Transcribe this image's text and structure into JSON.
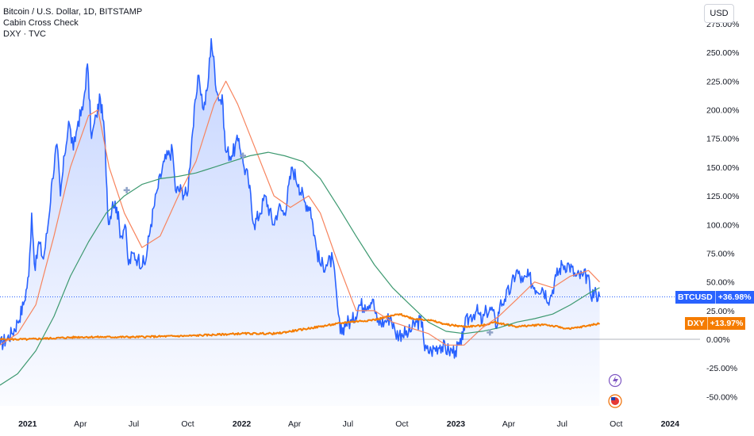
{
  "legend": {
    "symbol": "Bitcoin / U.S. Dollar, 1D, BITSTAMP",
    "indicator": "Cabin Cross Check",
    "compare": "DXY · TVC"
  },
  "currency": "USD",
  "colors": {
    "btc": "#2962ff",
    "btc_fill": "#2962ff",
    "dxy": "#f57c00",
    "ma_fast": "#f7845e",
    "ma_slow": "#3d9970",
    "cross": "#90a4c8",
    "baseline": "#b2b5be"
  },
  "badges": {
    "btc": {
      "label": "BTCUSD",
      "value": "+36.98%",
      "color": "#2962ff",
      "y": 36.98
    },
    "dxy": {
      "label": "DXY",
      "value": "+13.97%",
      "color": "#f57c00",
      "y": 13.97
    }
  },
  "chart_data": {
    "type": "line",
    "ylim": [
      -58,
      275
    ],
    "yticks": [
      {
        "v": 275,
        "label": "275.00%"
      },
      {
        "v": 250,
        "label": "250.00%"
      },
      {
        "v": 225,
        "label": "225.00%"
      },
      {
        "v": 200,
        "label": "200.00%"
      },
      {
        "v": 175,
        "label": "175.00%"
      },
      {
        "v": 150,
        "label": "150.00%"
      },
      {
        "v": 125,
        "label": "125.00%"
      },
      {
        "v": 100,
        "label": "100.00%"
      },
      {
        "v": 75,
        "label": "75.00%"
      },
      {
        "v": 50,
        "label": "50.00%"
      },
      {
        "v": 25,
        "label": "25.00%"
      },
      {
        "v": 0,
        "label": "0.00%"
      },
      {
        "v": -25,
        "label": "-25.00%"
      },
      {
        "v": -50,
        "label": "-50.00%"
      }
    ],
    "xlim": [
      "2020-11-15",
      "2024-01-25"
    ],
    "xticks": [
      {
        "date": "2021-01-01",
        "label": "2021",
        "bold": true
      },
      {
        "date": "2021-04-01",
        "label": "Apr",
        "bold": false
      },
      {
        "date": "2021-07-01",
        "label": "Jul",
        "bold": false
      },
      {
        "date": "2021-10-01",
        "label": "Oct",
        "bold": false
      },
      {
        "date": "2022-01-01",
        "label": "2022",
        "bold": true
      },
      {
        "date": "2022-04-01",
        "label": "Apr",
        "bold": false
      },
      {
        "date": "2022-07-01",
        "label": "Jul",
        "bold": false
      },
      {
        "date": "2022-10-01",
        "label": "Oct",
        "bold": false
      },
      {
        "date": "2023-01-01",
        "label": "2023",
        "bold": true
      },
      {
        "date": "2023-04-01",
        "label": "Apr",
        "bold": false
      },
      {
        "date": "2023-07-01",
        "label": "Jul",
        "bold": false
      },
      {
        "date": "2023-10-01",
        "label": "Oct",
        "bold": false
      },
      {
        "date": "2024-01-01",
        "label": "2024",
        "bold": true
      }
    ],
    "series": [
      {
        "name": "BTCUSD",
        "style": "area",
        "points": [
          [
            "2020-11-15",
            -5
          ],
          [
            "2020-11-25",
            0
          ],
          [
            "2020-12-05",
            5
          ],
          [
            "2020-12-15",
            15
          ],
          [
            "2020-12-25",
            30
          ],
          [
            "2021-01-03",
            55
          ],
          [
            "2021-01-08",
            110
          ],
          [
            "2021-01-14",
            60
          ],
          [
            "2021-01-20",
            85
          ],
          [
            "2021-01-28",
            70
          ],
          [
            "2021-02-05",
            100
          ],
          [
            "2021-02-12",
            140
          ],
          [
            "2021-02-20",
            170
          ],
          [
            "2021-02-26",
            125
          ],
          [
            "2021-03-05",
            160
          ],
          [
            "2021-03-12",
            190
          ],
          [
            "2021-03-20",
            165
          ],
          [
            "2021-03-28",
            190
          ],
          [
            "2021-04-05",
            200
          ],
          [
            "2021-04-13",
            240
          ],
          [
            "2021-04-20",
            175
          ],
          [
            "2021-04-28",
            195
          ],
          [
            "2021-05-05",
            210
          ],
          [
            "2021-05-12",
            180
          ],
          [
            "2021-05-19",
            100
          ],
          [
            "2021-05-26",
            120
          ],
          [
            "2021-06-02",
            115
          ],
          [
            "2021-06-09",
            90
          ],
          [
            "2021-06-16",
            100
          ],
          [
            "2021-06-22",
            65
          ],
          [
            "2021-06-30",
            75
          ],
          [
            "2021-07-08",
            70
          ],
          [
            "2021-07-20",
            65
          ],
          [
            "2021-07-30",
            100
          ],
          [
            "2021-08-10",
            130
          ],
          [
            "2021-08-22",
            155
          ],
          [
            "2021-09-05",
            165
          ],
          [
            "2021-09-10",
            130
          ],
          [
            "2021-09-20",
            130
          ],
          [
            "2021-09-30",
            125
          ],
          [
            "2021-10-08",
            175
          ],
          [
            "2021-10-15",
            210
          ],
          [
            "2021-10-20",
            230
          ],
          [
            "2021-10-28",
            200
          ],
          [
            "2021-11-04",
            220
          ],
          [
            "2021-11-10",
            262
          ],
          [
            "2021-11-20",
            215
          ],
          [
            "2021-11-30",
            205
          ],
          [
            "2021-12-04",
            165
          ],
          [
            "2021-12-15",
            160
          ],
          [
            "2021-12-27",
            175
          ],
          [
            "2022-01-05",
            150
          ],
          [
            "2022-01-12",
            140
          ],
          [
            "2022-01-22",
            100
          ],
          [
            "2022-02-01",
            110
          ],
          [
            "2022-02-10",
            125
          ],
          [
            "2022-02-24",
            100
          ],
          [
            "2022-03-05",
            115
          ],
          [
            "2022-03-15",
            110
          ],
          [
            "2022-03-28",
            150
          ],
          [
            "2022-04-08",
            135
          ],
          [
            "2022-04-18",
            120
          ],
          [
            "2022-04-28",
            115
          ],
          [
            "2022-05-08",
            80
          ],
          [
            "2022-05-15",
            65
          ],
          [
            "2022-05-25",
            65
          ],
          [
            "2022-06-05",
            70
          ],
          [
            "2022-06-13",
            30
          ],
          [
            "2022-06-18",
            5
          ],
          [
            "2022-06-28",
            15
          ],
          [
            "2022-07-08",
            15
          ],
          [
            "2022-07-20",
            30
          ],
          [
            "2022-07-30",
            30
          ],
          [
            "2022-08-12",
            35
          ],
          [
            "2022-08-20",
            15
          ],
          [
            "2022-09-01",
            15
          ],
          [
            "2022-09-12",
            20
          ],
          [
            "2022-09-20",
            5
          ],
          [
            "2022-10-01",
            5
          ],
          [
            "2022-10-12",
            5
          ],
          [
            "2022-10-26",
            15
          ],
          [
            "2022-11-05",
            15
          ],
          [
            "2022-11-09",
            -10
          ],
          [
            "2022-11-20",
            -10
          ],
          [
            "2022-12-05",
            -5
          ],
          [
            "2022-12-20",
            -10
          ],
          [
            "2022-12-31",
            -10
          ],
          [
            "2023-01-10",
            -5
          ],
          [
            "2023-01-14",
            10
          ],
          [
            "2023-01-25",
            20
          ],
          [
            "2023-02-05",
            25
          ],
          [
            "2023-02-15",
            15
          ],
          [
            "2023-02-22",
            25
          ],
          [
            "2023-03-05",
            25
          ],
          [
            "2023-03-10",
            10
          ],
          [
            "2023-03-17",
            30
          ],
          [
            "2023-03-25",
            35
          ],
          [
            "2023-04-05",
            45
          ],
          [
            "2023-04-14",
            60
          ],
          [
            "2023-04-25",
            50
          ],
          [
            "2023-05-05",
            55
          ],
          [
            "2023-05-15",
            45
          ],
          [
            "2023-05-28",
            45
          ],
          [
            "2023-06-10",
            35
          ],
          [
            "2023-06-21",
            55
          ],
          [
            "2023-07-01",
            65
          ],
          [
            "2023-07-13",
            65
          ],
          [
            "2023-07-24",
            55
          ],
          [
            "2023-08-05",
            55
          ],
          [
            "2023-08-14",
            55
          ],
          [
            "2023-08-18",
            40
          ],
          [
            "2023-08-28",
            40
          ],
          [
            "2023-09-03",
            37
          ]
        ]
      },
      {
        "name": "DXY",
        "style": "line",
        "points": [
          [
            "2020-11-15",
            0
          ],
          [
            "2021-01-01",
            0
          ],
          [
            "2021-04-01",
            2
          ],
          [
            "2021-07-01",
            2
          ],
          [
            "2021-10-01",
            3
          ],
          [
            "2022-01-01",
            5
          ],
          [
            "2022-03-01",
            5
          ],
          [
            "2022-05-01",
            10
          ],
          [
            "2022-07-01",
            15
          ],
          [
            "2022-08-15",
            17
          ],
          [
            "2022-09-27",
            22
          ],
          [
            "2022-10-20",
            18
          ],
          [
            "2022-11-15",
            17
          ],
          [
            "2022-12-15",
            13
          ],
          [
            "2023-01-15",
            11
          ],
          [
            "2023-02-15",
            12
          ],
          [
            "2023-03-08",
            15
          ],
          [
            "2023-04-15",
            11
          ],
          [
            "2023-05-31",
            13
          ],
          [
            "2023-07-14",
            9
          ],
          [
            "2023-08-15",
            12
          ],
          [
            "2023-09-03",
            14
          ]
        ]
      },
      {
        "name": "",
        "style": "line",
        "role": "ma_fast",
        "points": [
          [
            "2020-11-15",
            -5
          ],
          [
            "2020-12-15",
            5
          ],
          [
            "2021-01-15",
            30
          ],
          [
            "2021-02-15",
            90
          ],
          [
            "2021-03-15",
            150
          ],
          [
            "2021-04-15",
            195
          ],
          [
            "2021-05-01",
            200
          ],
          [
            "2021-05-20",
            150
          ],
          [
            "2021-06-15",
            110
          ],
          [
            "2021-07-15",
            80
          ],
          [
            "2021-08-15",
            90
          ],
          [
            "2021-09-15",
            125
          ],
          [
            "2021-10-15",
            155
          ],
          [
            "2021-11-15",
            205
          ],
          [
            "2021-12-05",
            225
          ],
          [
            "2021-12-25",
            205
          ],
          [
            "2022-01-25",
            165
          ],
          [
            "2022-02-25",
            125
          ],
          [
            "2022-03-25",
            115
          ],
          [
            "2022-04-25",
            125
          ],
          [
            "2022-05-15",
            110
          ],
          [
            "2022-06-15",
            65
          ],
          [
            "2022-07-15",
            25
          ],
          [
            "2022-08-15",
            25
          ],
          [
            "2022-09-15",
            15
          ],
          [
            "2022-10-15",
            10
          ],
          [
            "2022-11-15",
            5
          ],
          [
            "2022-12-15",
            -5
          ],
          [
            "2023-01-15",
            -5
          ],
          [
            "2023-02-15",
            10
          ],
          [
            "2023-03-15",
            20
          ],
          [
            "2023-04-15",
            35
          ],
          [
            "2023-05-15",
            50
          ],
          [
            "2023-06-15",
            45
          ],
          [
            "2023-07-15",
            55
          ],
          [
            "2023-08-15",
            60
          ],
          [
            "2023-09-03",
            50
          ]
        ]
      },
      {
        "name": "",
        "style": "line",
        "role": "ma_slow",
        "points": [
          [
            "2020-11-15",
            -40
          ],
          [
            "2020-12-15",
            -30
          ],
          [
            "2021-01-15",
            -10
          ],
          [
            "2021-02-15",
            20
          ],
          [
            "2021-03-15",
            55
          ],
          [
            "2021-04-15",
            85
          ],
          [
            "2021-05-15",
            110
          ],
          [
            "2021-06-15",
            125
          ],
          [
            "2021-07-15",
            135
          ],
          [
            "2021-08-15",
            140
          ],
          [
            "2021-09-15",
            142
          ],
          [
            "2021-10-15",
            145
          ],
          [
            "2021-11-15",
            150
          ],
          [
            "2021-12-15",
            155
          ],
          [
            "2022-01-15",
            160
          ],
          [
            "2022-02-15",
            163
          ],
          [
            "2022-03-15",
            160
          ],
          [
            "2022-04-15",
            155
          ],
          [
            "2022-05-15",
            140
          ],
          [
            "2022-06-15",
            115
          ],
          [
            "2022-07-15",
            90
          ],
          [
            "2022-08-15",
            65
          ],
          [
            "2022-09-15",
            45
          ],
          [
            "2022-10-15",
            30
          ],
          [
            "2022-11-15",
            15
          ],
          [
            "2022-12-15",
            7
          ],
          [
            "2023-01-15",
            5
          ],
          [
            "2023-02-15",
            7
          ],
          [
            "2023-03-15",
            10
          ],
          [
            "2023-04-15",
            15
          ],
          [
            "2023-05-15",
            18
          ],
          [
            "2023-06-15",
            22
          ],
          [
            "2023-07-15",
            30
          ],
          [
            "2023-08-15",
            40
          ],
          [
            "2023-09-03",
            45
          ]
        ]
      }
    ],
    "crosses": [
      [
        "2021-06-19",
        130
      ],
      [
        "2022-01-03",
        160
      ],
      [
        "2023-02-28",
        6
      ]
    ],
    "grid": false
  }
}
